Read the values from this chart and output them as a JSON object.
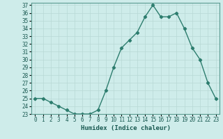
{
  "x": [
    0,
    1,
    2,
    3,
    4,
    5,
    6,
    7,
    8,
    9,
    10,
    11,
    12,
    13,
    14,
    15,
    16,
    17,
    18,
    19,
    20,
    21,
    22,
    23
  ],
  "y": [
    25.0,
    25.0,
    24.5,
    24.0,
    23.5,
    23.0,
    23.0,
    23.0,
    23.5,
    26.0,
    29.0,
    31.5,
    32.5,
    33.5,
    35.5,
    37.0,
    35.5,
    35.5,
    36.0,
    34.0,
    31.5,
    30.0,
    27.0,
    25.0
  ],
  "xlabel": "Humidex (Indice chaleur)",
  "line_color": "#2d7d6e",
  "bg_color": "#ceecea",
  "grid_color": "#b8d8d5",
  "ylim_min": 23,
  "ylim_max": 37,
  "xlim_min": -0.5,
  "xlim_max": 23.5,
  "ytick_step": 1,
  "xtick_labels": [
    "0",
    "1",
    "2",
    "3",
    "4",
    "5",
    "6",
    "7",
    "8",
    "9",
    "10",
    "11",
    "12",
    "13",
    "14",
    "15",
    "16",
    "17",
    "18",
    "19",
    "20",
    "21",
    "22",
    "23"
  ],
  "marker": "D",
  "marker_size": 2.2,
  "linewidth": 1.0,
  "tick_fontsize": 5.5,
  "xlabel_fontsize": 6.5
}
